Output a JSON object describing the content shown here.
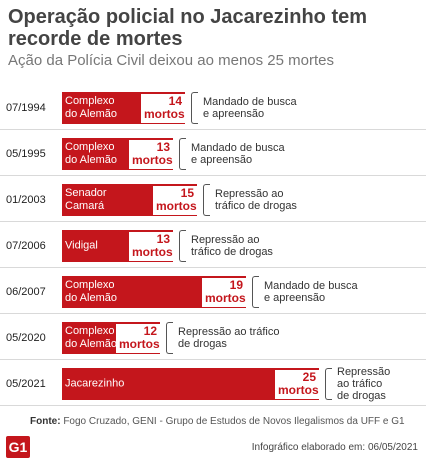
{
  "header": {
    "title": "Operação policial no Jacarezinho tem recorde de mortes",
    "subtitle": "Ação da Polícia Civil deixou ao menos 25 mortes"
  },
  "chart_data": {
    "type": "bar",
    "orientation": "horizontal",
    "bar_color": "#c4161c",
    "categories": [
      "07/1994",
      "05/1995",
      "01/2003",
      "07/2006",
      "06/2007",
      "05/2020",
      "05/2021"
    ],
    "values": [
      14,
      13,
      15,
      13,
      19,
      12,
      25
    ],
    "rows": [
      {
        "date": "07/1994",
        "place": "Complexo\ndo Alemão",
        "value": 14,
        "value_text": "14\nmortos",
        "reason": "Mandado de busca\ne apreensão"
      },
      {
        "date": "05/1995",
        "place": "Complexo\ndo Alemão",
        "value": 13,
        "value_text": "13\nmortos",
        "reason": "Mandado de busca\ne apreensão"
      },
      {
        "date": "01/2003",
        "place": "Senador\nCamará",
        "value": 15,
        "value_text": "15\nmortos",
        "reason": "Repressão ao\ntráfico de drogas"
      },
      {
        "date": "07/2006",
        "place": "Vidigal",
        "value": 13,
        "value_text": "13\nmortos",
        "reason": "Repressão ao\ntráfico de drogas"
      },
      {
        "date": "06/2007",
        "place": "Complexo\ndo Alemão",
        "value": 19,
        "value_text": "19\nmortos",
        "reason": "Mandado de busca\ne apreensão"
      },
      {
        "date": "05/2020",
        "place": "Complexo\ndo Alemão",
        "value": 12,
        "value_text": "12\nmortos",
        "reason": "Repressão ao tráfico\nde drogas"
      },
      {
        "date": "05/2021",
        "place": "Jacarezinho",
        "value": 25,
        "value_text": "25\nmortos",
        "reason": "Repressão\nao tráfico\nde drogas"
      }
    ]
  },
  "footer": {
    "source_label": "Fonte:",
    "source_text": " Fogo Cruzado, GENI - Grupo de Estudos de Novos Ilegalismos da UFF e G1",
    "logo": "G1",
    "credit": "Infográfico elaborado em: 06/05/2021"
  }
}
